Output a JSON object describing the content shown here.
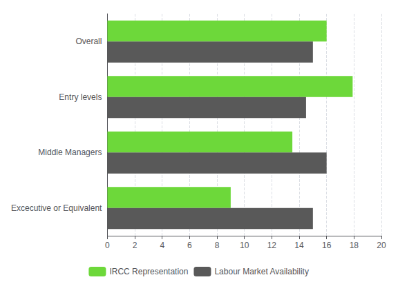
{
  "chart_data": {
    "type": "bar",
    "orientation": "horizontal",
    "categories": [
      "Overall",
      "Entry levels",
      "Middle Managers",
      "Excecutive or Equivalent"
    ],
    "series": [
      {
        "name": "IRCC Representation",
        "color": "#6dd83a",
        "values": [
          16.0,
          17.9,
          13.5,
          9.0
        ]
      },
      {
        "name": "Labour Market Availability",
        "color": "#595959",
        "values": [
          15.0,
          14.5,
          16.0,
          15.0
        ]
      }
    ],
    "xlim": [
      0,
      20
    ],
    "xticks": [
      0,
      2,
      4,
      6,
      8,
      10,
      12,
      14,
      16,
      18,
      20
    ],
    "grid": true,
    "legend": "bottom"
  }
}
